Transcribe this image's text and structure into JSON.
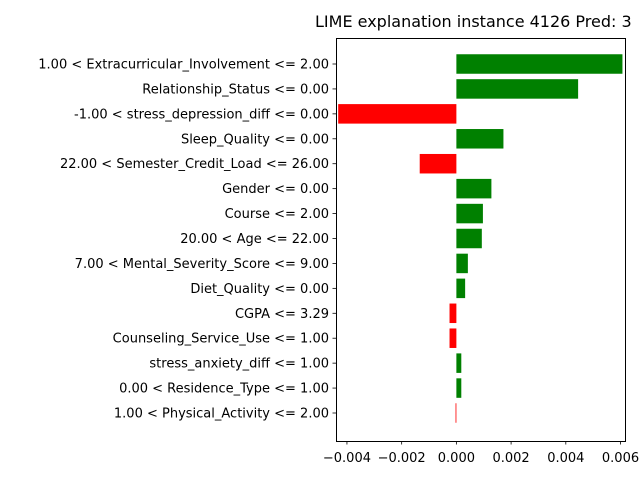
{
  "chart_data": {
    "type": "bar",
    "orientation": "horizontal",
    "title": "LIME explanation instance 4126 Pred: 3",
    "xlabel": "",
    "ylabel": "",
    "xlim": [
      -0.0044,
      0.0062
    ],
    "xticks": [
      -0.004,
      -0.002,
      0.0,
      0.002,
      0.004,
      0.006
    ],
    "xtick_labels": [
      "−0.004",
      "−0.002",
      "0.000",
      "0.002",
      "0.004",
      "0.006"
    ],
    "grid": false,
    "positive_color": "#008000",
    "negative_color": "#ff0000",
    "categories": [
      "1.00 < Extracurricular_Involvement <= 2.00",
      "Relationship_Status <= 0.00",
      "-1.00 < stress_depression_diff <= 0.00",
      "Sleep_Quality <= 0.00",
      "22.00 < Semester_Credit_Load <= 26.00",
      "Gender <= 0.00",
      "Course <= 2.00",
      "20.00 < Age <= 22.00",
      "7.00 < Mental_Severity_Score <= 9.00",
      "Diet_Quality <= 0.00",
      "CGPA <= 3.29",
      "Counseling_Service_Use <= 1.00",
      "stress_anxiety_diff <= 1.00",
      "0.00 < Residence_Type <= 1.00",
      "1.00 < Physical_Activity <= 2.00"
    ],
    "values": [
      0.00607,
      0.00445,
      -0.00432,
      0.00172,
      -0.00134,
      0.00128,
      0.00097,
      0.00093,
      0.00042,
      0.00032,
      -0.00025,
      -0.00025,
      0.00018,
      0.00018,
      -3e-05
    ]
  }
}
